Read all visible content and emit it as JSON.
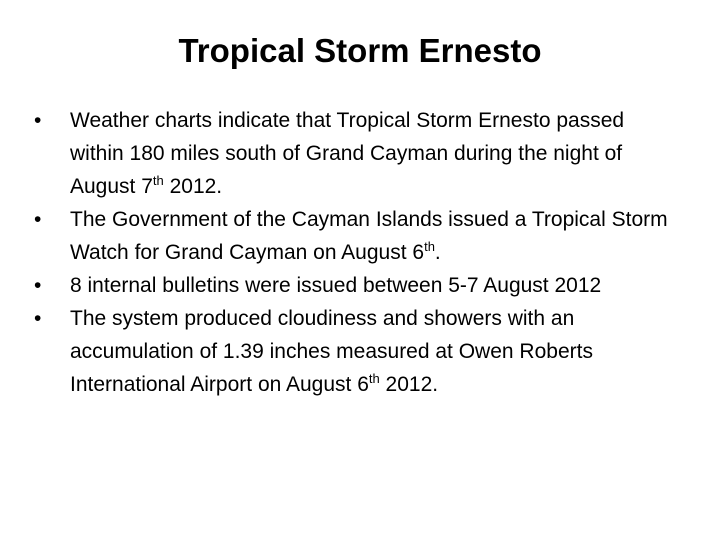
{
  "title": "Tropical Storm Ernesto",
  "bullets": [
    [
      "Weather charts indicate that Tropical Storm Ernesto passed within 180 miles south of Grand Cayman during the night of August 7",
      "th",
      " 2012."
    ],
    [
      "The Government of the Cayman Islands issued a Tropical Storm Watch for Grand Cayman on August 6",
      "th",
      "."
    ],
    [
      "8 internal bulletins were issued between 5-7 August 2012"
    ],
    [
      "The system produced cloudiness and showers with an accumulation of 1.39 inches measured at Owen Roberts International Airport on August 6",
      "th",
      " 2012."
    ]
  ]
}
